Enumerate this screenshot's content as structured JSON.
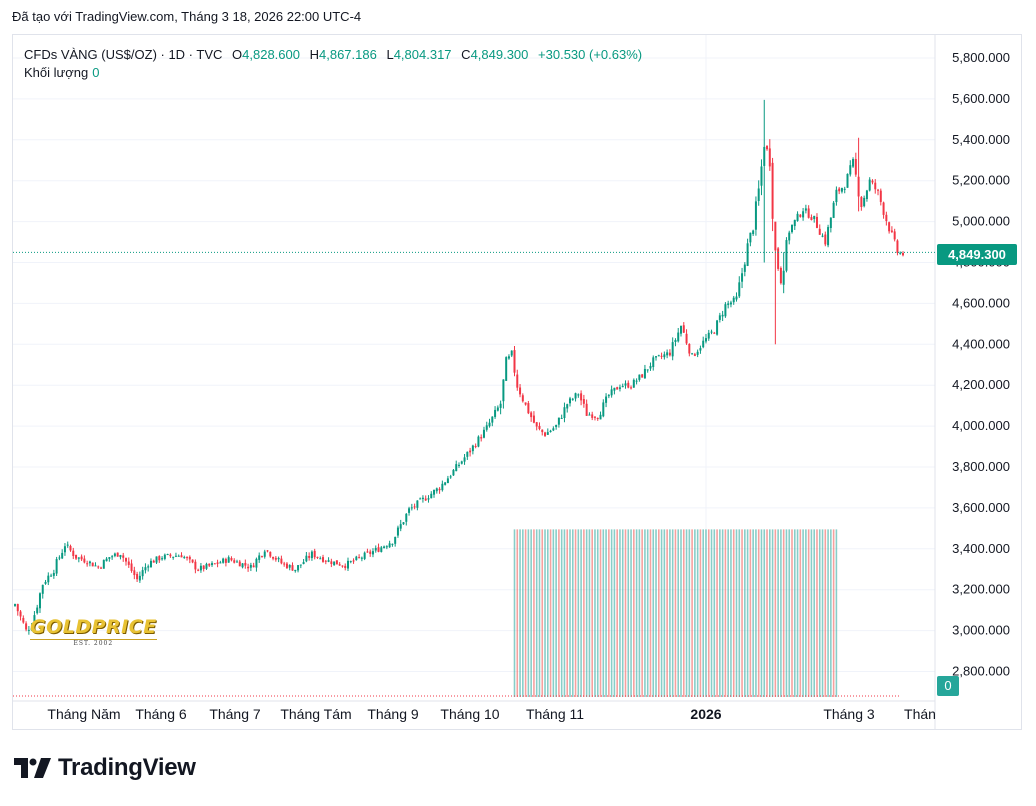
{
  "caption": "Đã tạo với TradingView.com, Tháng 3 18, 2026 22:00 UTC-4",
  "legend": {
    "symbol": "CFDs VÀNG (US$/OZ) · 1D · TVC",
    "open_label": "O",
    "open": "4,828.600",
    "high_label": "H",
    "high": "4,867.186",
    "low_label": "L",
    "low": "4,804.317",
    "close_label": "C",
    "close": "4,849.300",
    "change": "+30.530 (+0.63%)",
    "volume_label": "Khối lượng",
    "volume": "0"
  },
  "badges": {
    "last_price": "4,849.300",
    "volume": "0"
  },
  "watermark": {
    "logo_text": "GOLDPRICE",
    "logo_sub": "EST. 2002"
  },
  "brand": {
    "name": "TradingView"
  },
  "colors": {
    "up": "#089981",
    "down": "#f23645",
    "up_vol": "#26a69a",
    "down_vol": "#ef5350"
  },
  "chart_data": {
    "type": "candlestick",
    "ylim": [
      2700,
      5900
    ],
    "yticks": [
      "5,800.000",
      "5,600.000",
      "5,400.000",
      "5,200.000",
      "5,000.000",
      "4,800.000",
      "4,600.000",
      "4,400.000",
      "4,200.000",
      "4,000.000",
      "3,800.000",
      "3,600.000",
      "3,400.000",
      "3,200.000",
      "3,000.000",
      "2,800.000"
    ],
    "xticks": [
      {
        "label": "Tháng Năm",
        "bold": false
      },
      {
        "label": "Tháng 6",
        "bold": false
      },
      {
        "label": "Tháng 7",
        "bold": false
      },
      {
        "label": "Tháng Tám",
        "bold": false
      },
      {
        "label": "Tháng 9",
        "bold": false
      },
      {
        "label": "Tháng 10",
        "bold": false
      },
      {
        "label": "Tháng 11",
        "bold": false
      },
      {
        "label": "2026",
        "bold": true
      },
      {
        "label": "Tháng 3",
        "bold": false
      },
      {
        "label": "Thán",
        "bold": false
      }
    ],
    "last_price": 4849.3,
    "anchors": [
      [
        0,
        3130
      ],
      [
        4,
        3000
      ],
      [
        6,
        3030
      ],
      [
        10,
        3230
      ],
      [
        14,
        3300
      ],
      [
        18,
        3420
      ],
      [
        22,
        3360
      ],
      [
        26,
        3340
      ],
      [
        30,
        3310
      ],
      [
        34,
        3360
      ],
      [
        38,
        3380
      ],
      [
        44,
        3250
      ],
      [
        48,
        3330
      ],
      [
        53,
        3360
      ],
      [
        60,
        3370
      ],
      [
        66,
        3300
      ],
      [
        71,
        3320
      ],
      [
        77,
        3350
      ],
      [
        85,
        3310
      ],
      [
        90,
        3400
      ],
      [
        96,
        3330
      ],
      [
        101,
        3300
      ],
      [
        107,
        3375
      ],
      [
        113,
        3340
      ],
      [
        119,
        3320
      ],
      [
        125,
        3360
      ],
      [
        131,
        3400
      ],
      [
        136,
        3440
      ],
      [
        142,
        3590
      ],
      [
        147,
        3640
      ],
      [
        153,
        3700
      ],
      [
        158,
        3780
      ],
      [
        164,
        3880
      ],
      [
        170,
        3990
      ],
      [
        175,
        4110
      ],
      [
        177,
        4310
      ],
      [
        179,
        4350
      ],
      [
        181,
        4200
      ],
      [
        184,
        4100
      ],
      [
        188,
        3990
      ],
      [
        191,
        3960
      ],
      [
        195,
        4000
      ],
      [
        199,
        4110
      ],
      [
        203,
        4160
      ],
      [
        206,
        4060
      ],
      [
        210,
        4050
      ],
      [
        214,
        4150
      ],
      [
        218,
        4200
      ],
      [
        222,
        4200
      ],
      [
        226,
        4250
      ],
      [
        230,
        4320
      ],
      [
        236,
        4360
      ],
      [
        240,
        4490
      ],
      [
        244,
        4340
      ],
      [
        248,
        4410
      ],
      [
        252,
        4470
      ],
      [
        256,
        4590
      ],
      [
        260,
        4620
      ],
      [
        264,
        4880
      ],
      [
        266,
        4980
      ],
      [
        268,
        5150
      ],
      [
        270,
        5380
      ],
      [
        272,
        5310
      ],
      [
        274,
        4850
      ],
      [
        276,
        4710
      ],
      [
        279,
        4960
      ],
      [
        284,
        5060
      ],
      [
        288,
        5010
      ],
      [
        292,
        4900
      ],
      [
        296,
        5140
      ],
      [
        299,
        5180
      ],
      [
        302,
        5290
      ],
      [
        305,
        5080
      ],
      [
        308,
        5200
      ],
      [
        311,
        5140
      ],
      [
        314,
        5010
      ],
      [
        318,
        4850
      ],
      [
        320,
        4840
      ]
    ],
    "candle_count": 321,
    "spikes": [
      {
        "index": 270,
        "high": 5595,
        "low": 4800
      },
      {
        "index": 274,
        "high": 4990,
        "low": 4400
      },
      {
        "index": 277,
        "high": 4850,
        "low": 4650
      },
      {
        "index": 304,
        "high": 5410,
        "low": 5050
      }
    ],
    "volume_span": {
      "start": 180,
      "end": 296,
      "level": 3495
    }
  }
}
